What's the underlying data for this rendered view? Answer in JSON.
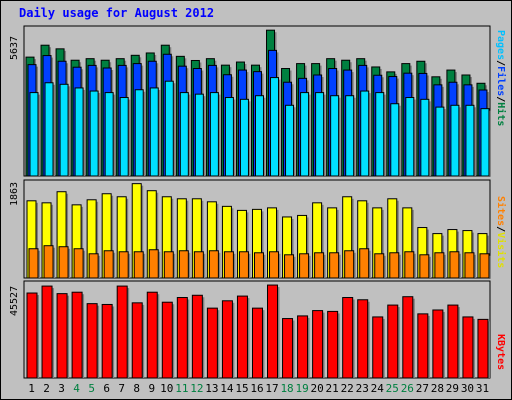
{
  "title": "Daily usage for August 2012",
  "colors": {
    "hits": "#008040",
    "files": "#0040ff",
    "pages": "#00e0ff",
    "visits": "#ffff00",
    "sites": "#ff8000",
    "kbytes": "#ff0000",
    "weekend_day": "#008040",
    "weekday": "#000000"
  },
  "chart_data": [
    {
      "type": "bar",
      "panel": "top",
      "categories": [
        "1",
        "2",
        "3",
        "4",
        "5",
        "6",
        "7",
        "8",
        "9",
        "10",
        "11",
        "12",
        "13",
        "14",
        "15",
        "16",
        "17",
        "18",
        "19",
        "20",
        "21",
        "22",
        "23",
        "24",
        "25",
        "26",
        "27",
        "28",
        "29",
        "30",
        "31"
      ],
      "ymax_label": "5637",
      "ylim": [
        0,
        5637
      ],
      "legend": [
        "Pages",
        "/",
        "Files",
        "/",
        "Hits"
      ],
      "series": [
        {
          "name": "Hits",
          "values": [
            4590,
            5050,
            4910,
            4470,
            4530,
            4470,
            4530,
            4660,
            4750,
            5050,
            4620,
            4460,
            4530,
            4280,
            4400,
            4280,
            5630,
            4150,
            4340,
            4340,
            4530,
            4470,
            4530,
            4210,
            4020,
            4340,
            4430,
            3830,
            4090,
            3900,
            3580
          ]
        },
        {
          "name": "Files",
          "values": [
            4300,
            4650,
            4430,
            4200,
            4270,
            4170,
            4270,
            4340,
            4430,
            4700,
            4240,
            4150,
            4270,
            3910,
            4090,
            4030,
            4850,
            3620,
            3770,
            3900,
            4150,
            4090,
            4270,
            3890,
            3840,
            3970,
            3960,
            3520,
            3620,
            3520,
            3320
          ]
        },
        {
          "name": "Pages",
          "values": [
            3220,
            3600,
            3540,
            3400,
            3280,
            3220,
            3030,
            3330,
            3400,
            3660,
            3220,
            3160,
            3220,
            3030,
            2960,
            3100,
            3800,
            2730,
            3220,
            3220,
            3100,
            3100,
            3280,
            3220,
            2790,
            3030,
            2960,
            2660,
            2730,
            2730,
            2600
          ]
        }
      ]
    },
    {
      "type": "bar",
      "panel": "middle",
      "categories": [
        "1",
        "2",
        "3",
        "4",
        "5",
        "6",
        "7",
        "8",
        "9",
        "10",
        "11",
        "12",
        "13",
        "14",
        "15",
        "16",
        "17",
        "18",
        "19",
        "20",
        "21",
        "22",
        "23",
        "24",
        "25",
        "26",
        "27",
        "28",
        "29",
        "30",
        "31"
      ],
      "ymax_label": "1863",
      "ylim": [
        0,
        1863
      ],
      "legend": [
        "Sites",
        "/",
        "Visits"
      ],
      "series": [
        {
          "name": "Visits",
          "values": [
            1530,
            1490,
            1710,
            1450,
            1550,
            1670,
            1610,
            1870,
            1730,
            1610,
            1570,
            1570,
            1510,
            1420,
            1340,
            1360,
            1390,
            1210,
            1240,
            1490,
            1390,
            1610,
            1530,
            1390,
            1570,
            1390,
            1000,
            880,
            960,
            940,
            880
          ]
        },
        {
          "name": "Sites",
          "values": [
            580,
            640,
            620,
            580,
            480,
            540,
            520,
            520,
            560,
            520,
            540,
            520,
            540,
            520,
            520,
            500,
            520,
            460,
            480,
            500,
            500,
            540,
            580,
            480,
            500,
            520,
            460,
            500,
            520,
            500,
            480
          ]
        }
      ]
    },
    {
      "type": "bar",
      "panel": "bottom",
      "categories": [
        "1",
        "2",
        "3",
        "4",
        "5",
        "6",
        "7",
        "8",
        "9",
        "10",
        "11",
        "12",
        "13",
        "14",
        "15",
        "16",
        "17",
        "18",
        "19",
        "20",
        "21",
        "22",
        "23",
        "24",
        "25",
        "26",
        "27",
        "28",
        "29",
        "30",
        "31"
      ],
      "ymax_label": "45527",
      "ylim": [
        0,
        45527
      ],
      "legend": [
        "KBytes"
      ],
      "series": [
        {
          "name": "KBytes",
          "values": [
            41600,
            45000,
            41300,
            42000,
            36400,
            36000,
            45000,
            36800,
            42000,
            37100,
            39400,
            40500,
            34200,
            37800,
            40100,
            34200,
            45500,
            29100,
            30400,
            33000,
            32600,
            39400,
            38300,
            29900,
            35700,
            39800,
            31400,
            33300,
            35700,
            29900,
            28700
          ]
        }
      ]
    }
  ],
  "x_labels": [
    {
      "text": "1",
      "weekend": false
    },
    {
      "text": "2",
      "weekend": false
    },
    {
      "text": "3",
      "weekend": false
    },
    {
      "text": "4",
      "weekend": true
    },
    {
      "text": "5",
      "weekend": true
    },
    {
      "text": "6",
      "weekend": false
    },
    {
      "text": "7",
      "weekend": false
    },
    {
      "text": "8",
      "weekend": false
    },
    {
      "text": "9",
      "weekend": false
    },
    {
      "text": "10",
      "weekend": false
    },
    {
      "text": "11",
      "weekend": true
    },
    {
      "text": "12",
      "weekend": true
    },
    {
      "text": "13",
      "weekend": false
    },
    {
      "text": "14",
      "weekend": false
    },
    {
      "text": "15",
      "weekend": false
    },
    {
      "text": "16",
      "weekend": false
    },
    {
      "text": "17",
      "weekend": false
    },
    {
      "text": "18",
      "weekend": true
    },
    {
      "text": "19",
      "weekend": true
    },
    {
      "text": "20",
      "weekend": false
    },
    {
      "text": "21",
      "weekend": false
    },
    {
      "text": "22",
      "weekend": false
    },
    {
      "text": "23",
      "weekend": false
    },
    {
      "text": "24",
      "weekend": false
    },
    {
      "text": "25",
      "weekend": true
    },
    {
      "text": "26",
      "weekend": true
    },
    {
      "text": "27",
      "weekend": false
    },
    {
      "text": "28",
      "weekend": false
    },
    {
      "text": "29",
      "weekend": false
    },
    {
      "text": "30",
      "weekend": false
    },
    {
      "text": "31",
      "weekend": false
    }
  ]
}
